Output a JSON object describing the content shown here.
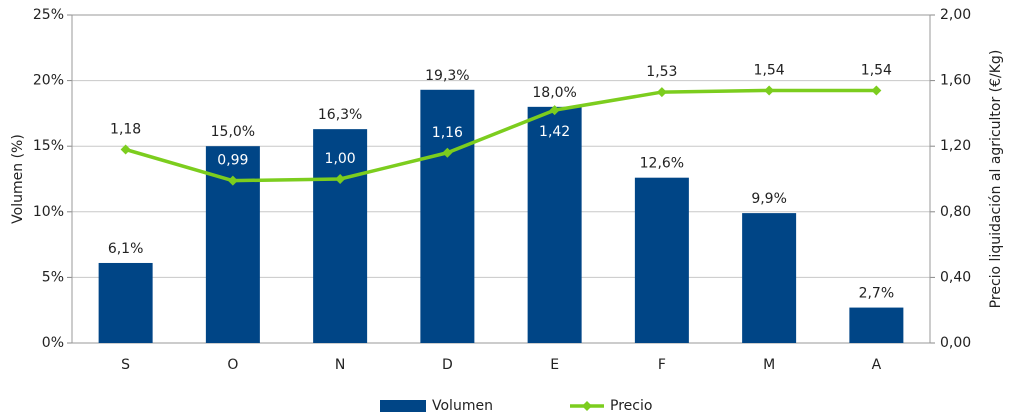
{
  "chart_data": {
    "type": "bar_line",
    "categories": [
      "S",
      "O",
      "N",
      "D",
      "E",
      "F",
      "M",
      "A"
    ],
    "series": [
      {
        "name": "Volumen",
        "color": "#004586",
        "type": "bar",
        "axis": "y",
        "values": [
          6.1,
          15.0,
          16.3,
          19.3,
          18.0,
          12.6,
          9.9,
          2.7
        ],
        "value_labels": [
          "6,1%",
          "15,0%",
          "16,3%",
          "19,3%",
          "18,0%",
          "12,6%",
          "9,9%",
          "2,7%"
        ]
      },
      {
        "name": "Precio",
        "color": "#7ccd1e",
        "type": "line",
        "axis": "y2",
        "values": [
          1.18,
          0.99,
          1.0,
          1.16,
          1.42,
          1.53,
          1.54,
          1.54
        ],
        "value_labels": [
          "1,18",
          "0,99",
          "1,00",
          "1,16",
          "1,42",
          "1,53",
          "1,54",
          "1,54"
        ]
      }
    ],
    "ylabel": "Volumen (%)",
    "y2label": "Precio liquidación al agricultor (€/Kg)",
    "ylim": [
      0,
      25
    ],
    "yticks": [
      {
        "value": 0,
        "label": "0%"
      },
      {
        "value": 5,
        "label": "5%"
      },
      {
        "value": 10,
        "label": "10%"
      },
      {
        "value": 15,
        "label": "15%"
      },
      {
        "value": 20,
        "label": "20%"
      },
      {
        "value": 25,
        "label": "25%"
      }
    ],
    "y2lim": [
      0,
      2
    ],
    "y2ticks": [
      {
        "value": 0,
        "label": "0,00"
      },
      {
        "value": 0.4,
        "label": "0,40"
      },
      {
        "value": 0.8,
        "label": "0,80"
      },
      {
        "value": 1.2,
        "label": "1,20"
      },
      {
        "value": 1.6,
        "label": "1,60"
      },
      {
        "value": 2,
        "label": "2,00"
      }
    ],
    "grid": true,
    "legend": "bottom"
  }
}
